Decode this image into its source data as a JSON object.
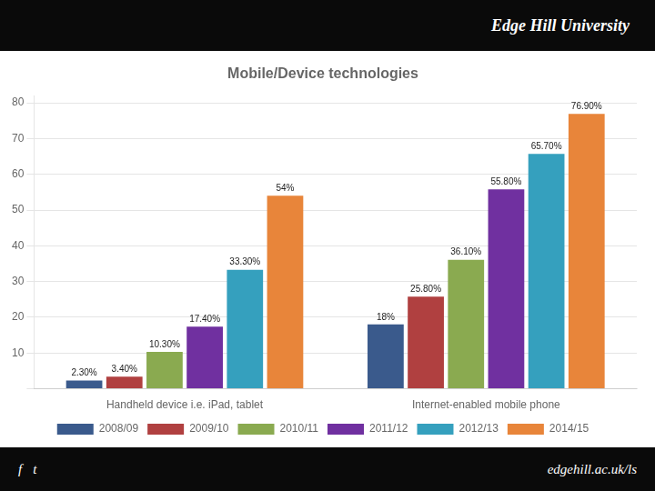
{
  "chart_data": {
    "type": "bar",
    "title": "Mobile/Device technologies",
    "subtitle": "Edge Hill University",
    "annotations": [
      "f",
      "t",
      "edgehill.ac.uk/ls"
    ],
    "categories": [
      "Handheld device i.e. iPad, tablet",
      "Internet-enabled mobile phone"
    ],
    "series": [
      {
        "name": "2008/09",
        "color": "#3A5A8C",
        "values": [
          2.3,
          18.0
        ],
        "value_labels": [
          "2.30%",
          "18%"
        ]
      },
      {
        "name": "2009/10",
        "color": "#B04040",
        "values": [
          3.4,
          25.8
        ],
        "value_labels": [
          "3.40%",
          "25.80%"
        ]
      },
      {
        "name": "2010/11",
        "color": "#8AAA50",
        "values": [
          10.3,
          36.1
        ],
        "value_labels": [
          "10.30%",
          "36.10%"
        ]
      },
      {
        "name": "2011/12",
        "color": "#7030A0",
        "values": [
          17.4,
          55.8
        ],
        "value_labels": [
          "17.40%",
          "55.80%"
        ]
      },
      {
        "name": "2012/13",
        "color": "#35A0BE",
        "values": [
          33.3,
          65.7
        ],
        "value_labels": [
          "33.30%",
          "65.70%"
        ]
      },
      {
        "name": "2014/15",
        "color": "#E8853A",
        "values": [
          54.0,
          76.9
        ],
        "value_labels": [
          "54%",
          "76.90%"
        ]
      }
    ],
    "ylim": [
      0,
      82
    ],
    "yticks": [
      {
        "value": 0,
        "label": ""
      },
      10,
      20,
      30,
      40,
      50,
      60,
      70,
      80
    ],
    "grid": true,
    "legend": "bottom",
    "data_labels": true
  }
}
